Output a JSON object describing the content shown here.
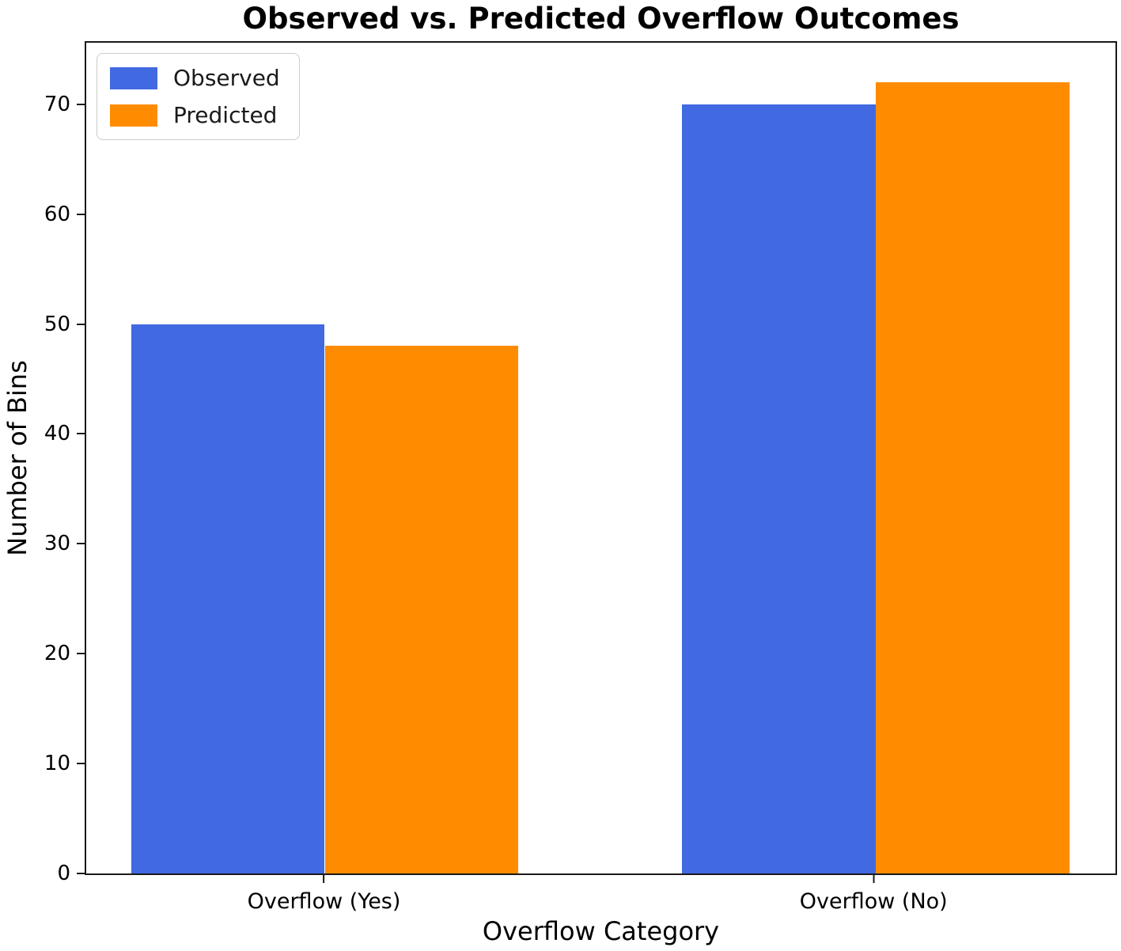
{
  "chart_data": {
    "type": "bar",
    "title": "Observed vs. Predicted Overflow Outcomes",
    "xlabel": "Overflow Category",
    "ylabel": "Number of Bins",
    "categories": [
      "Overflow (Yes)",
      "Overflow (No)"
    ],
    "series": [
      {
        "name": "Observed",
        "color": "#4169E1",
        "values": [
          50,
          70
        ]
      },
      {
        "name": "Predicted",
        "color": "#FF8C00",
        "values": [
          48,
          72
        ]
      }
    ],
    "ylim": [
      0,
      75.6
    ],
    "yticks": [
      0,
      10,
      20,
      30,
      40,
      50,
      60,
      70
    ],
    "grid": false,
    "legend_position": "upper left",
    "background": "#ffffff",
    "spine_color": "#1a1a1a"
  }
}
